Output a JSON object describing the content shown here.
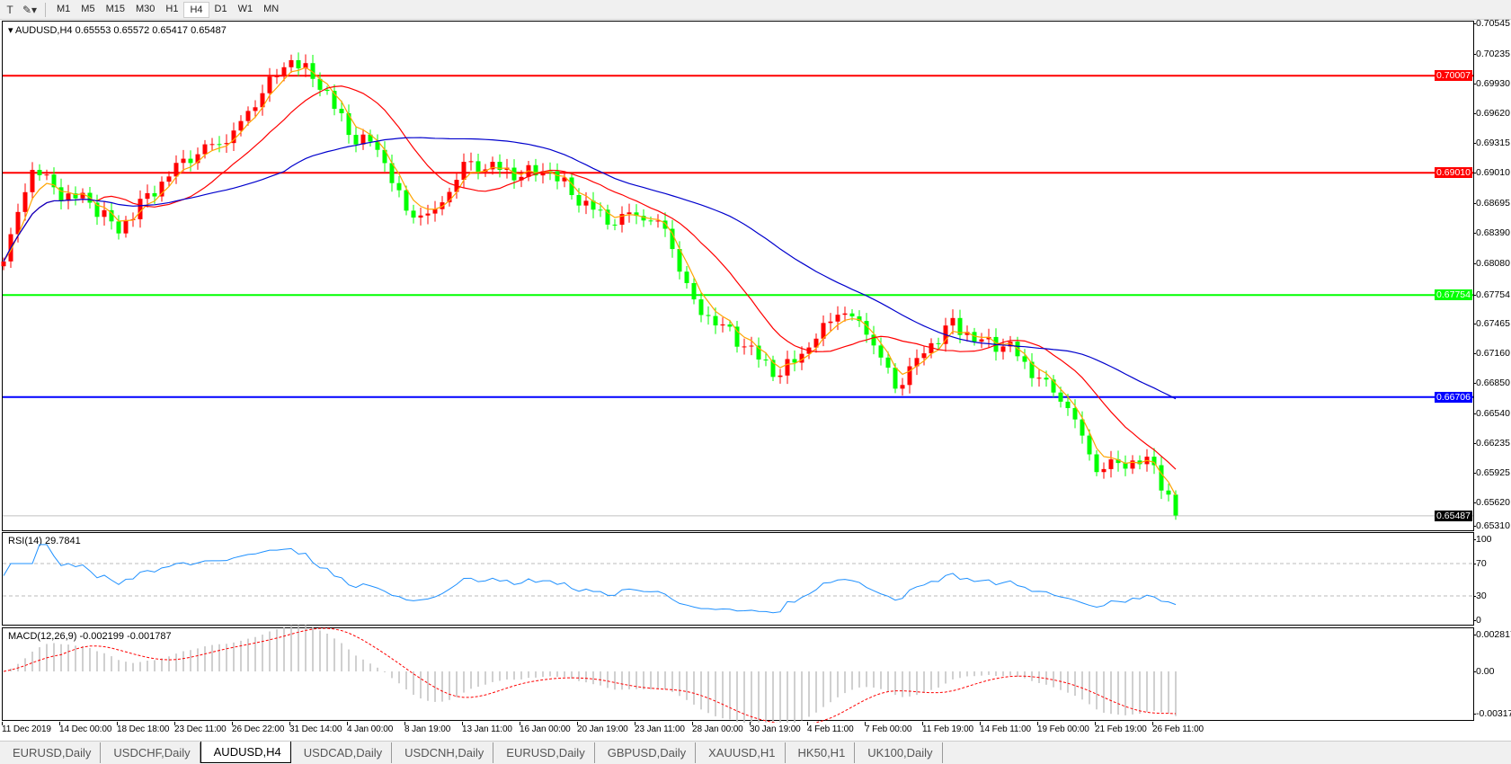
{
  "toolbar": {
    "timeframes": [
      "M1",
      "M5",
      "M15",
      "M30",
      "H1",
      "H4",
      "D1",
      "W1",
      "MN"
    ],
    "active": "H4",
    "icons": [
      "text-tool-icon",
      "shapes-tool-icon"
    ]
  },
  "main": {
    "label": "AUDUSD,H4  0.65553 0.65572 0.65417 0.65487"
  },
  "rsi": {
    "label": "RSI(14) 29.7841",
    "ticks": [
      "100",
      "70",
      "30",
      "0"
    ]
  },
  "macd": {
    "label": "MACD(12,26,9) -0.002199 -0.001787",
    "ticks": [
      "0.002817",
      "0.00",
      "-0.003179"
    ]
  },
  "price_axis": [
    "0.70545",
    "0.70235",
    "0.69930",
    "0.69620",
    "0.69315",
    "0.69010",
    "0.68695",
    "0.68390",
    "0.68080",
    "0.67754",
    "0.67465",
    "0.67160",
    "0.66850",
    "0.66540",
    "0.66235",
    "0.65925",
    "0.65620",
    "0.65310"
  ],
  "levels": [
    {
      "price": 0.70007,
      "label": "0.70007",
      "color": "#ff0000"
    },
    {
      "price": 0.6901,
      "label": "0.69010",
      "color": "#ff0000"
    },
    {
      "price": 0.67754,
      "label": "0.67754",
      "color": "#00ff00"
    },
    {
      "price": 0.66706,
      "label": "0.66706",
      "color": "#0000ff"
    }
  ],
  "current": {
    "price": 0.65487,
    "label": "0.65487",
    "color": "#000000"
  },
  "chart_data": {
    "type": "candlestick",
    "symbol": "AUDUSD",
    "timeframe": "H4",
    "ylim": [
      0.6531,
      0.70545
    ],
    "close_every_4_bars": [
      0.681,
      0.6905,
      0.688,
      0.687,
      0.6845,
      0.6875,
      0.691,
      0.6925,
      0.694,
      0.6985,
      0.7015,
      0.6995,
      0.694,
      0.693,
      0.686,
      0.686,
      0.691,
      0.6905,
      0.69,
      0.69,
      0.6875,
      0.685,
      0.686,
      0.6845,
      0.6765,
      0.6745,
      0.6715,
      0.6695,
      0.672,
      0.676,
      0.674,
      0.668,
      0.672,
      0.6745,
      0.673,
      0.672,
      0.669,
      0.666,
      0.6595,
      0.6605,
      0.66,
      0.6549
    ],
    "up_color": "#ff0000",
    "down_color": "#00ff00",
    "ma_colors": [
      "#ffa500",
      "#ff0000",
      "#0000cd"
    ],
    "rsi_color": "#1e90ff",
    "rsi_levels": [
      70,
      30
    ],
    "macd_hist_color": "#c0c0c0",
    "macd_signal_color": "#ff0000",
    "x_labels": [
      "11 Dec 2019",
      "14 Dec 00:00",
      "18 Dec 18:00",
      "23 Dec 11:00",
      "26 Dec 22:00",
      "31 Dec 14:00",
      "4 Jan 00:00",
      "8 Jan 19:00",
      "13 Jan 11:00",
      "16 Jan 00:00",
      "20 Jan 19:00",
      "23 Jan 11:00",
      "28 Jan 00:00",
      "30 Jan 19:00",
      "4 Feb 11:00",
      "7 Feb 00:00",
      "11 Feb 19:00",
      "14 Feb 11:00",
      "19 Feb 00:00",
      "21 Feb 19:00",
      "26 Feb 11:00"
    ]
  },
  "tabs": [
    "EURUSD,Daily",
    "USDCHF,Daily",
    "AUDUSD,H4",
    "USDCAD,Daily",
    "USDCNH,Daily",
    "EURUSD,Daily",
    "GBPUSD,Daily",
    "XAUUSD,H1",
    "HK50,H1",
    "UK100,Daily"
  ],
  "active_tab": "AUDUSD,H4"
}
